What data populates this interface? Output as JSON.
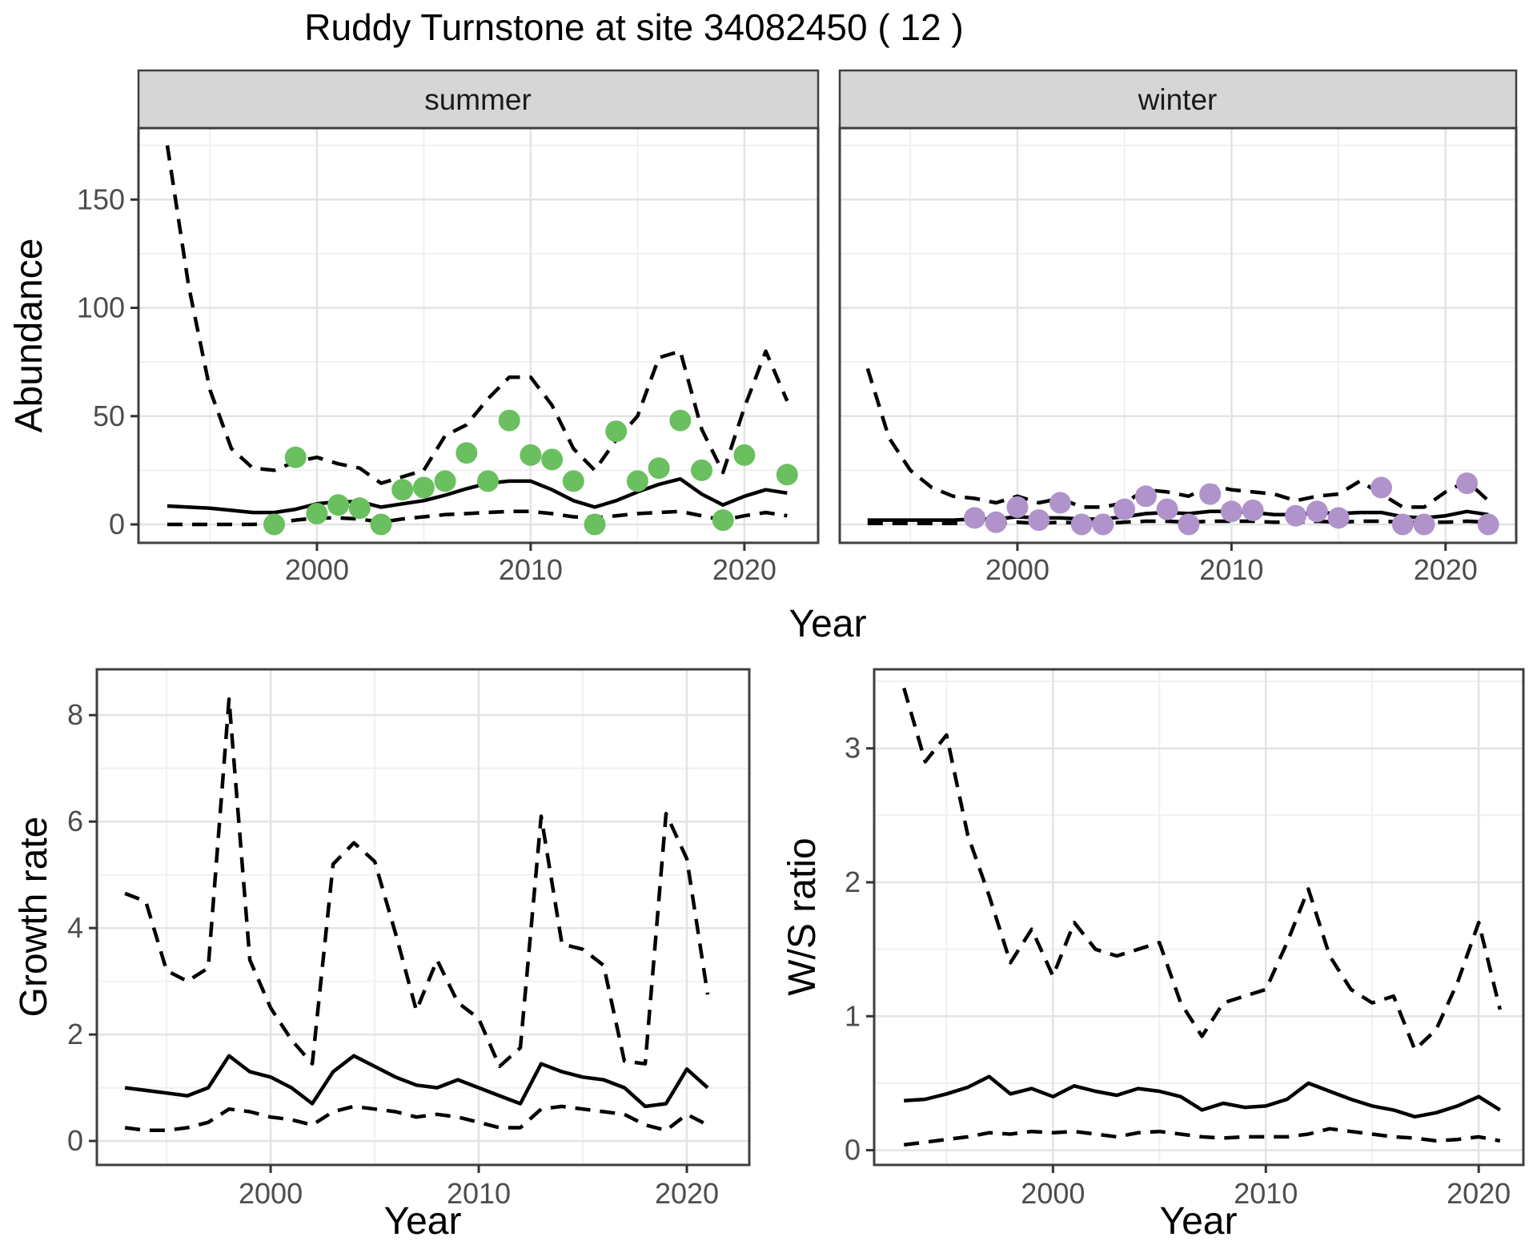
{
  "title": "Ruddy Turnstone at site 34082450 ( 12 )",
  "axes": {
    "abundance_label": "Abundance",
    "year_label": "Year",
    "growth_label": "Growth rate",
    "ws_label": "W/S ratio"
  },
  "facets": {
    "summer": "summer",
    "winter": "winter"
  },
  "colors": {
    "summer_point": "#6abf5f",
    "winter_point": "#b093cb",
    "line": "#000000",
    "strip_bg": "#d6d6d6",
    "panel_border": "#3f3f3f",
    "tick_text": "#4d4d4d"
  },
  "chart_data": [
    {
      "id": "abundance-summer",
      "type": "line",
      "facet": "summer",
      "title": "Ruddy Turnstone at site 34082450 ( 12 )",
      "xlabel": "Year",
      "ylabel": "Abundance",
      "xlim": [
        1991.65,
        2023.45
      ],
      "ylim": [
        -8.5,
        183
      ],
      "x_ticks": [
        2000,
        2010,
        2020
      ],
      "y_ticks": [
        0,
        50,
        100,
        150
      ],
      "x_minor": [
        1995,
        2005,
        2015
      ],
      "y_minor": [
        25,
        75,
        125,
        175
      ],
      "grid": "on",
      "x": [
        1993,
        1994,
        1995,
        1996,
        1997,
        1998,
        1999,
        2000,
        2001,
        2002,
        2003,
        2004,
        2005,
        2006,
        2007,
        2008,
        2009,
        2010,
        2011,
        2012,
        2013,
        2014,
        2015,
        2016,
        2017,
        2018,
        2019,
        2020,
        2021,
        2022
      ],
      "series": [
        {
          "name": "upper-ci",
          "type": "dashed",
          "y": [
            175,
            110,
            62,
            35,
            26,
            25,
            29,
            31,
            28,
            26,
            19,
            22,
            25,
            41,
            46,
            58,
            68,
            68,
            55,
            35,
            25,
            39,
            50,
            77,
            80,
            44,
            24,
            54,
            80,
            57
          ]
        },
        {
          "name": "mean",
          "type": "solid",
          "y": [
            8.5,
            8,
            7.5,
            6.5,
            5.5,
            5.5,
            7,
            9.5,
            10.5,
            10.5,
            8,
            9.5,
            11,
            13.5,
            16.5,
            19,
            20,
            20,
            16,
            11,
            8,
            11,
            15,
            18.5,
            21,
            14,
            9,
            13,
            16,
            14.5
          ]
        },
        {
          "name": "lower-ci",
          "type": "dashed",
          "y": [
            0,
            0,
            0,
            0,
            0,
            0.5,
            2,
            3,
            3,
            2.5,
            1,
            2.5,
            3.5,
            4.5,
            5,
            5.5,
            6,
            6,
            5,
            3.5,
            3,
            4,
            5,
            5.5,
            6,
            4,
            2,
            4,
            5.5,
            4
          ]
        },
        {
          "name": "observed-count",
          "type": "points",
          "color": "#6abf5f",
          "x": [
            1998,
            1999,
            2000,
            2001,
            2002,
            2003,
            2004,
            2005,
            2006,
            2007,
            2008,
            2009,
            2010,
            2011,
            2012,
            2013,
            2014,
            2015,
            2016,
            2017,
            2018,
            2019,
            2020,
            2022
          ],
          "y": [
            0,
            31,
            5,
            9,
            7.5,
            0,
            16,
            17,
            20,
            33,
            20,
            48,
            32,
            30,
            20,
            0,
            43,
            20,
            26,
            48,
            25,
            2,
            32,
            23
          ]
        }
      ]
    },
    {
      "id": "abundance-winter",
      "type": "line",
      "facet": "winter",
      "xlabel": "Year",
      "ylabel": "Abundance",
      "xlim": [
        1991.7,
        2023.3
      ],
      "ylim": [
        -8.5,
        183
      ],
      "x_ticks": [
        2000,
        2010,
        2020
      ],
      "y_ticks": [
        0,
        50,
        100,
        150
      ],
      "x_minor": [
        1995,
        2005,
        2015
      ],
      "y_minor": [
        25,
        75,
        125,
        175
      ],
      "grid": "on",
      "x": [
        1993,
        1994,
        1995,
        1996,
        1997,
        1998,
        1999,
        2000,
        2001,
        2002,
        2003,
        2004,
        2005,
        2006,
        2007,
        2008,
        2009,
        2010,
        2011,
        2012,
        2013,
        2014,
        2015,
        2016,
        2017,
        2018,
        2019,
        2020,
        2021,
        2022
      ],
      "series": [
        {
          "name": "upper-ci",
          "type": "dashed",
          "y": [
            72,
            40,
            25,
            17,
            13,
            12,
            10,
            13,
            10,
            12,
            8,
            8,
            10,
            16,
            15,
            13,
            18,
            16,
            15,
            14,
            11,
            13,
            14,
            20,
            14,
            8,
            8,
            15,
            20,
            11
          ]
        },
        {
          "name": "mean",
          "type": "solid",
          "y": [
            2,
            2,
            2,
            2,
            2,
            2.5,
            2.5,
            3.5,
            3,
            3,
            2.5,
            2.5,
            3.5,
            5,
            5.5,
            5,
            6,
            6,
            5.5,
            4.5,
            4.5,
            5.5,
            5,
            5.5,
            5.5,
            3.5,
            3,
            4,
            6,
            4.5
          ]
        },
        {
          "name": "lower-ci",
          "type": "dashed",
          "y": [
            0.5,
            0.5,
            0.5,
            0.5,
            0.5,
            0.5,
            0.5,
            1,
            0.5,
            1,
            0.5,
            0.5,
            1,
            1.5,
            1.5,
            1,
            1.5,
            1.5,
            1.5,
            1,
            1,
            1.5,
            1,
            1.5,
            1.5,
            1,
            1,
            1,
            1.5,
            1
          ]
        },
        {
          "name": "observed-count",
          "type": "points",
          "color": "#b093cb",
          "x": [
            1998,
            1999,
            2000,
            2001,
            2002,
            2003,
            2004,
            2005,
            2006,
            2007,
            2008,
            2009,
            2010,
            2011,
            2013,
            2014,
            2015,
            2017,
            2018,
            2019,
            2021,
            2022
          ],
          "y": [
            3,
            1,
            8,
            2,
            10,
            0,
            0,
            7,
            13,
            7,
            0,
            14,
            6,
            6.5,
            4,
            6,
            3,
            17,
            0,
            0,
            19,
            0
          ]
        }
      ]
    },
    {
      "id": "growth-rate",
      "type": "line",
      "xlabel": "Year",
      "ylabel": "Growth rate",
      "xlim": [
        1991.65,
        2023.0
      ],
      "ylim": [
        -0.45,
        8.86
      ],
      "x_ticks": [
        2000,
        2010,
        2020
      ],
      "y_ticks": [
        0,
        2,
        4,
        6,
        8
      ],
      "x_minor": [
        1995,
        2005,
        2015
      ],
      "y_minor": [
        1,
        3,
        5,
        7
      ],
      "grid": "on",
      "x": [
        1993,
        1994,
        1995,
        1996,
        1997,
        1998,
        1999,
        2000,
        2001,
        2002,
        2003,
        2004,
        2005,
        2006,
        2007,
        2008,
        2009,
        2010,
        2011,
        2012,
        2013,
        2014,
        2015,
        2016,
        2017,
        2018,
        2019,
        2020,
        2021
      ],
      "series": [
        {
          "name": "upper-ci",
          "type": "dashed",
          "y": [
            4.65,
            4.5,
            3.2,
            3.0,
            3.25,
            8.3,
            3.4,
            2.5,
            1.9,
            1.45,
            5.2,
            5.6,
            5.25,
            3.9,
            2.45,
            3.4,
            2.6,
            2.3,
            1.4,
            1.75,
            6.1,
            3.7,
            3.6,
            3.3,
            1.5,
            1.45,
            6.15,
            5.3,
            2.75
          ]
        },
        {
          "name": "mean",
          "type": "solid",
          "y": [
            1.0,
            0.95,
            0.9,
            0.85,
            1.0,
            1.6,
            1.3,
            1.2,
            1.0,
            0.7,
            1.3,
            1.6,
            1.4,
            1.2,
            1.05,
            1.0,
            1.15,
            1.0,
            0.85,
            0.7,
            1.45,
            1.3,
            1.2,
            1.15,
            1.0,
            0.65,
            0.7,
            1.35,
            1.0
          ]
        },
        {
          "name": "lower-ci",
          "type": "dashed",
          "y": [
            0.25,
            0.2,
            0.2,
            0.25,
            0.35,
            0.6,
            0.55,
            0.45,
            0.4,
            0.3,
            0.55,
            0.65,
            0.6,
            0.55,
            0.45,
            0.5,
            0.45,
            0.35,
            0.25,
            0.25,
            0.6,
            0.65,
            0.6,
            0.55,
            0.5,
            0.3,
            0.2,
            0.5,
            0.3
          ]
        }
      ]
    },
    {
      "id": "ws-ratio",
      "type": "line",
      "xlabel": "Year",
      "ylabel": "W/S ratio",
      "xlim": [
        1991.6,
        2022.1
      ],
      "ylim": [
        -0.11,
        3.59
      ],
      "x_ticks": [
        2000,
        2010,
        2020
      ],
      "y_ticks": [
        0,
        1,
        2,
        3
      ],
      "x_minor": [
        1995,
        2005,
        2015
      ],
      "y_minor": [
        0.5,
        1.5,
        2.5,
        3.5
      ],
      "grid": "on",
      "x": [
        1993,
        1994,
        1995,
        1996,
        1997,
        1998,
        1999,
        2000,
        2001,
        2002,
        2003,
        2004,
        2005,
        2006,
        2007,
        2008,
        2009,
        2010,
        2011,
        2012,
        2013,
        2014,
        2015,
        2016,
        2017,
        2018,
        2019,
        2020,
        2021
      ],
      "series": [
        {
          "name": "upper-ci",
          "type": "dashed",
          "y": [
            3.45,
            2.9,
            3.1,
            2.35,
            1.9,
            1.4,
            1.65,
            1.3,
            1.7,
            1.5,
            1.45,
            1.5,
            1.55,
            1.1,
            0.85,
            1.1,
            1.15,
            1.2,
            1.55,
            1.95,
            1.45,
            1.2,
            1.1,
            1.15,
            0.75,
            0.9,
            1.25,
            1.7,
            1.05
          ]
        },
        {
          "name": "mean",
          "type": "solid",
          "y": [
            0.37,
            0.38,
            0.42,
            0.47,
            0.55,
            0.42,
            0.46,
            0.4,
            0.48,
            0.44,
            0.41,
            0.46,
            0.44,
            0.4,
            0.3,
            0.35,
            0.32,
            0.33,
            0.38,
            0.5,
            0.44,
            0.38,
            0.33,
            0.3,
            0.25,
            0.28,
            0.33,
            0.4,
            0.3
          ]
        },
        {
          "name": "lower-ci",
          "type": "dashed",
          "y": [
            0.04,
            0.06,
            0.08,
            0.1,
            0.13,
            0.12,
            0.14,
            0.13,
            0.14,
            0.12,
            0.1,
            0.13,
            0.14,
            0.12,
            0.1,
            0.09,
            0.1,
            0.1,
            0.1,
            0.12,
            0.16,
            0.14,
            0.12,
            0.1,
            0.09,
            0.07,
            0.08,
            0.1,
            0.07
          ]
        }
      ]
    }
  ]
}
